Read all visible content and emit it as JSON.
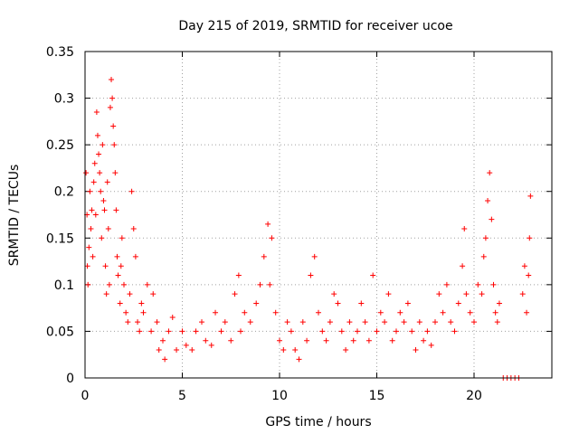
{
  "chart_data": {
    "type": "scatter",
    "title": "Day 215 of 2019, SRMTID for receiver ucoe",
    "xlabel": "GPS time / hours",
    "ylabel": "SRMTID / TECUs",
    "xlim": [
      0,
      24
    ],
    "ylim": [
      0,
      0.35
    ],
    "xticks": [
      0,
      5,
      10,
      15,
      20
    ],
    "yticks": [
      0,
      0.05,
      0.1,
      0.15,
      0.2,
      0.25,
      0.3,
      0.35
    ],
    "xtick_labels": [
      "0",
      "5",
      "10",
      "15",
      "20"
    ],
    "ytick_labels": [
      "0",
      "0.05",
      "0.1",
      "0.15",
      "0.2",
      "0.25",
      "0.3",
      "0.35"
    ],
    "grid": true,
    "marker": "+",
    "color": "#ff0000",
    "series": [
      {
        "name": "SRMTID",
        "points": [
          [
            0.05,
            0.22
          ],
          [
            0.1,
            0.175
          ],
          [
            0.12,
            0.12
          ],
          [
            0.15,
            0.1
          ],
          [
            0.2,
            0.14
          ],
          [
            0.25,
            0.2
          ],
          [
            0.3,
            0.16
          ],
          [
            0.35,
            0.18
          ],
          [
            0.4,
            0.13
          ],
          [
            0.45,
            0.21
          ],
          [
            0.5,
            0.23
          ],
          [
            0.55,
            0.175
          ],
          [
            0.6,
            0.285
          ],
          [
            0.65,
            0.26
          ],
          [
            0.7,
            0.24
          ],
          [
            0.75,
            0.22
          ],
          [
            0.8,
            0.2
          ],
          [
            0.85,
            0.15
          ],
          [
            0.9,
            0.25
          ],
          [
            0.95,
            0.19
          ],
          [
            1.0,
            0.18
          ],
          [
            1.05,
            0.12
          ],
          [
            1.1,
            0.09
          ],
          [
            1.15,
            0.21
          ],
          [
            1.2,
            0.16
          ],
          [
            1.25,
            0.1
          ],
          [
            1.3,
            0.29
          ],
          [
            1.35,
            0.32
          ],
          [
            1.4,
            0.3
          ],
          [
            1.45,
            0.27
          ],
          [
            1.5,
            0.25
          ],
          [
            1.55,
            0.22
          ],
          [
            1.6,
            0.18
          ],
          [
            1.65,
            0.13
          ],
          [
            1.7,
            0.11
          ],
          [
            1.8,
            0.08
          ],
          [
            1.85,
            0.12
          ],
          [
            1.9,
            0.15
          ],
          [
            2.0,
            0.1
          ],
          [
            2.1,
            0.07
          ],
          [
            2.2,
            0.06
          ],
          [
            2.3,
            0.09
          ],
          [
            2.4,
            0.2
          ],
          [
            2.5,
            0.16
          ],
          [
            2.6,
            0.13
          ],
          [
            2.7,
            0.06
          ],
          [
            2.8,
            0.05
          ],
          [
            2.9,
            0.08
          ],
          [
            3.0,
            0.07
          ],
          [
            3.2,
            0.1
          ],
          [
            3.4,
            0.05
          ],
          [
            3.5,
            0.09
          ],
          [
            3.7,
            0.06
          ],
          [
            3.8,
            0.03
          ],
          [
            4.0,
            0.04
          ],
          [
            4.1,
            0.02
          ],
          [
            4.3,
            0.05
          ],
          [
            4.5,
            0.065
          ],
          [
            4.7,
            0.03
          ],
          [
            5.0,
            0.05
          ],
          [
            5.2,
            0.035
          ],
          [
            5.5,
            0.03
          ],
          [
            5.7,
            0.05
          ],
          [
            6.0,
            0.06
          ],
          [
            6.2,
            0.04
          ],
          [
            6.5,
            0.035
          ],
          [
            6.7,
            0.07
          ],
          [
            7.0,
            0.05
          ],
          [
            7.2,
            0.06
          ],
          [
            7.5,
            0.04
          ],
          [
            7.7,
            0.09
          ],
          [
            7.9,
            0.11
          ],
          [
            8.0,
            0.05
          ],
          [
            8.2,
            0.07
          ],
          [
            8.5,
            0.06
          ],
          [
            8.8,
            0.08
          ],
          [
            9.0,
            0.1
          ],
          [
            9.2,
            0.13
          ],
          [
            9.4,
            0.165
          ],
          [
            9.5,
            0.1
          ],
          [
            9.6,
            0.15
          ],
          [
            9.8,
            0.07
          ],
          [
            10.0,
            0.04
          ],
          [
            10.2,
            0.03
          ],
          [
            10.4,
            0.06
          ],
          [
            10.6,
            0.05
          ],
          [
            10.8,
            0.03
          ],
          [
            11.0,
            0.02
          ],
          [
            11.2,
            0.06
          ],
          [
            11.4,
            0.04
          ],
          [
            11.6,
            0.11
          ],
          [
            11.8,
            0.13
          ],
          [
            12.0,
            0.07
          ],
          [
            12.2,
            0.05
          ],
          [
            12.4,
            0.04
          ],
          [
            12.6,
            0.06
          ],
          [
            12.8,
            0.09
          ],
          [
            13.0,
            0.08
          ],
          [
            13.2,
            0.05
          ],
          [
            13.4,
            0.03
          ],
          [
            13.6,
            0.06
          ],
          [
            13.8,
            0.04
          ],
          [
            14.0,
            0.05
          ],
          [
            14.2,
            0.08
          ],
          [
            14.4,
            0.06
          ],
          [
            14.6,
            0.04
          ],
          [
            14.8,
            0.11
          ],
          [
            15.0,
            0.05
          ],
          [
            15.2,
            0.07
          ],
          [
            15.4,
            0.06
          ],
          [
            15.6,
            0.09
          ],
          [
            15.8,
            0.04
          ],
          [
            16.0,
            0.05
          ],
          [
            16.2,
            0.07
          ],
          [
            16.4,
            0.06
          ],
          [
            16.6,
            0.08
          ],
          [
            16.8,
            0.05
          ],
          [
            17.0,
            0.03
          ],
          [
            17.2,
            0.06
          ],
          [
            17.4,
            0.04
          ],
          [
            17.6,
            0.05
          ],
          [
            17.8,
            0.035
          ],
          [
            18.0,
            0.06
          ],
          [
            18.2,
            0.09
          ],
          [
            18.4,
            0.07
          ],
          [
            18.6,
            0.1
          ],
          [
            18.8,
            0.06
          ],
          [
            19.0,
            0.05
          ],
          [
            19.2,
            0.08
          ],
          [
            19.4,
            0.12
          ],
          [
            19.5,
            0.16
          ],
          [
            19.6,
            0.09
          ],
          [
            19.8,
            0.07
          ],
          [
            20.0,
            0.06
          ],
          [
            20.2,
            0.1
          ],
          [
            20.4,
            0.09
          ],
          [
            20.5,
            0.13
          ],
          [
            20.6,
            0.15
          ],
          [
            20.7,
            0.19
          ],
          [
            20.8,
            0.22
          ],
          [
            20.9,
            0.17
          ],
          [
            21.0,
            0.1
          ],
          [
            21.1,
            0.07
          ],
          [
            21.2,
            0.06
          ],
          [
            21.3,
            0.08
          ],
          [
            21.5,
            0.0
          ],
          [
            21.7,
            0.0
          ],
          [
            21.9,
            0.0
          ],
          [
            22.1,
            0.0
          ],
          [
            22.3,
            0.0
          ],
          [
            22.5,
            0.09
          ],
          [
            22.6,
            0.12
          ],
          [
            22.7,
            0.07
          ],
          [
            22.8,
            0.11
          ],
          [
            22.85,
            0.15
          ],
          [
            22.9,
            0.195
          ]
        ]
      }
    ]
  }
}
